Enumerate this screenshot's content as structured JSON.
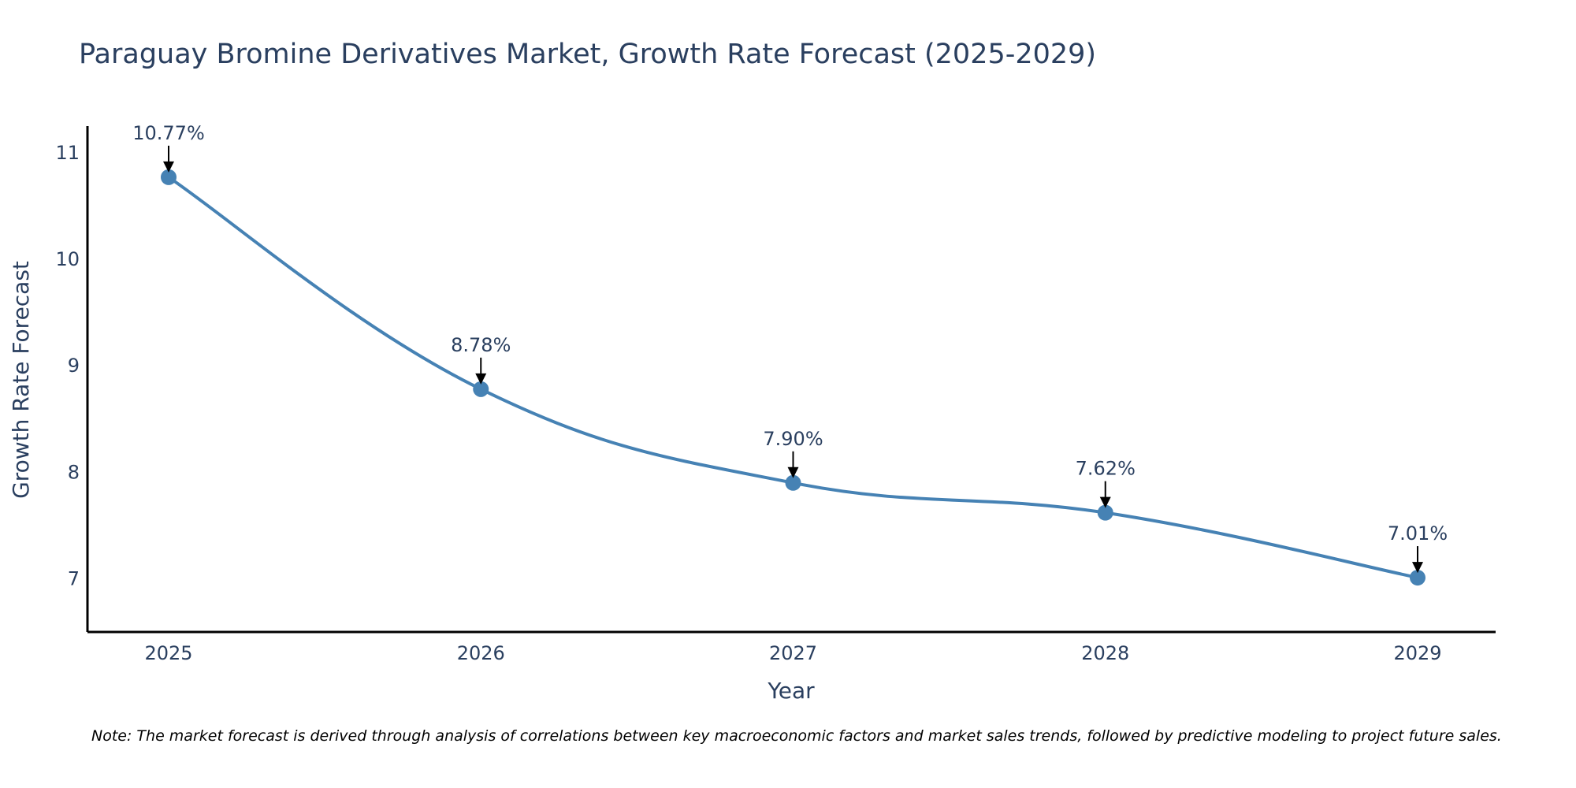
{
  "chart_data": {
    "type": "line",
    "title": "Paraguay Bromine Derivatives Market, Growth Rate Forecast (2025-2029)",
    "xlabel": "Year",
    "ylabel": "Growth Rate Forecast",
    "categories": [
      "2025",
      "2026",
      "2027",
      "2028",
      "2029"
    ],
    "series": [
      {
        "name": "Growth Rate Forecast",
        "values": [
          10.77,
          8.78,
          7.9,
          7.62,
          7.01
        ],
        "labels": [
          "10.77%",
          "8.78%",
          "7.90%",
          "7.62%",
          "7.01%"
        ],
        "color": "#4682b4"
      }
    ],
    "yticks": [
      7,
      8,
      9,
      10,
      11
    ],
    "ylim": [
      6.5,
      11.25
    ],
    "grid": false,
    "legend": "none",
    "note": "Note: The market forecast is derived through analysis of correlations between key macroeconomic factors and market sales trends, followed by predictive modeling to project future sales."
  }
}
